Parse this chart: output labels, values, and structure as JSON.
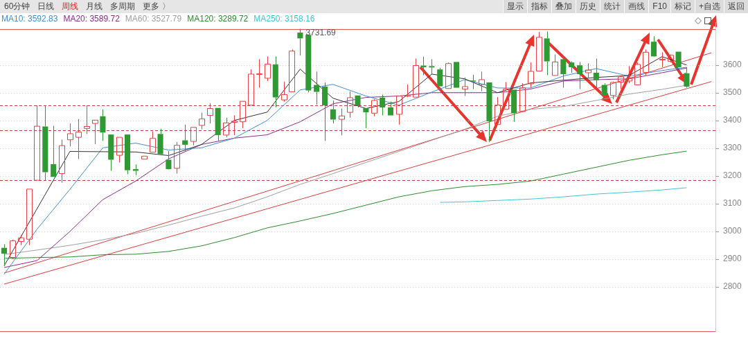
{
  "chart_data": {
    "type": "candlestick",
    "categories": [
      null,
      null,
      null,
      null,
      null,
      null,
      null,
      null,
      null,
      null,
      null,
      null,
      null,
      null,
      null,
      null,
      null,
      null,
      null,
      null,
      null,
      null,
      null,
      null,
      null,
      null,
      null,
      null,
      null,
      null,
      null,
      null,
      null,
      null,
      null,
      null,
      null,
      null,
      null,
      null,
      null,
      null,
      null,
      null,
      null,
      null,
      null,
      null,
      null,
      null,
      null,
      null,
      null,
      null,
      null,
      null,
      null,
      null,
      null,
      null,
      null,
      null,
      null,
      null,
      null,
      null,
      null,
      null,
      null,
      null,
      null,
      null,
      null,
      null,
      null,
      null,
      null,
      null,
      null,
      null,
      null,
      null,
      null,
      null,
      null,
      null,
      null
    ],
    "ohlc": [
      [
        2941,
        2954,
        2875,
        2920
      ],
      [
        2906,
        2970,
        2900,
        2966
      ],
      [
        2964,
        2987,
        2951,
        2977
      ],
      [
        2972,
        3153,
        2951,
        3153
      ],
      [
        3185,
        3455,
        3185,
        3380
      ],
      [
        3379,
        3455,
        3184,
        3214
      ],
      [
        3243,
        3381,
        3197,
        3197
      ],
      [
        3209,
        3332,
        3176,
        3310
      ],
      [
        3331,
        3390,
        3307,
        3353
      ],
      [
        3340,
        3406,
        3261,
        3359
      ],
      [
        3372,
        3455,
        3352,
        3379
      ],
      [
        3390,
        3402,
        3315,
        3402
      ],
      [
        3416,
        3441,
        3327,
        3357
      ],
      [
        3350,
        3350,
        3219,
        3259
      ],
      [
        3275,
        3340,
        3249,
        3340
      ],
      [
        3350,
        3350,
        3207,
        3221
      ],
      [
        3225,
        3242,
        3203,
        3219
      ],
      [
        3261,
        3272,
        3261,
        3272
      ],
      [
        3286,
        3361,
        3286,
        3336
      ],
      [
        3352,
        3371,
        3279,
        3279
      ],
      [
        3259,
        3290,
        3224,
        3225
      ],
      [
        3228,
        3323,
        3209,
        3311
      ],
      [
        3329,
        3386,
        3290,
        3313
      ],
      [
        3325,
        3376,
        3311,
        3376
      ],
      [
        3383,
        3429,
        3369,
        3406
      ],
      [
        3419,
        3463,
        3390,
        3444
      ],
      [
        3446,
        3446,
        3325,
        3348
      ],
      [
        3348,
        3411,
        3340,
        3392
      ],
      [
        3394,
        3419,
        3348,
        3398
      ],
      [
        3396,
        3470,
        3373,
        3470
      ],
      [
        3456,
        3585,
        3456,
        3568
      ],
      [
        3567,
        3622,
        3519,
        3569
      ],
      [
        3553,
        3632,
        3543,
        3604
      ],
      [
        3603,
        3632,
        3448,
        3484
      ],
      [
        3475,
        3541,
        3469,
        3494
      ],
      [
        3504,
        3657,
        3504,
        3651
      ],
      [
        3718,
        3731.69,
        3635,
        3697
      ],
      [
        3710,
        3710,
        3502,
        3509
      ],
      [
        3529,
        3577,
        3458,
        3504
      ],
      [
        3523,
        3538,
        3327,
        3455
      ],
      [
        3441,
        3473,
        3390,
        3404
      ],
      [
        3405,
        3444,
        3347,
        3417
      ],
      [
        3430,
        3506,
        3411,
        3483
      ],
      [
        3491,
        3491,
        3448,
        3455
      ],
      [
        3445,
        3445,
        3373,
        3430
      ],
      [
        3427,
        3477,
        3416,
        3473
      ],
      [
        3483,
        3494,
        3419,
        3448
      ],
      [
        3448,
        3469,
        3419,
        3419
      ],
      [
        3423,
        3489,
        3386,
        3489
      ],
      [
        3488,
        3531,
        3485,
        3491
      ],
      [
        3485,
        3624,
        3485,
        3599
      ],
      [
        3599,
        3631,
        3564,
        3593
      ],
      [
        3597,
        3622,
        3566,
        3592
      ],
      [
        3585,
        3591,
        3524,
        3524
      ],
      [
        3516,
        3610,
        3516,
        3606
      ],
      [
        3612,
        3612,
        3519,
        3519
      ],
      [
        3514,
        3556,
        3489,
        3523
      ],
      [
        3545,
        3566,
        3514,
        3541
      ],
      [
        3531,
        3577,
        3506,
        3548
      ],
      [
        3538,
        3538,
        3323,
        3398
      ],
      [
        3386,
        3485,
        3386,
        3456
      ],
      [
        3441,
        3539,
        3440,
        3514
      ],
      [
        3512,
        3512,
        3396,
        3427
      ],
      [
        3433,
        3535,
        3431,
        3518
      ],
      [
        3533,
        3610,
        3519,
        3578
      ],
      [
        3579,
        3720,
        3579,
        3701
      ],
      [
        3697,
        3722,
        3564,
        3614
      ],
      [
        3563,
        3639,
        3563,
        3612
      ],
      [
        3622,
        3635,
        3519,
        3568
      ],
      [
        3610,
        3614,
        3573,
        3593
      ],
      [
        3600,
        3612,
        3514,
        3568
      ],
      [
        3573,
        3607,
        3552,
        3583
      ],
      [
        3573,
        3624,
        3514,
        3546
      ],
      [
        3529,
        3535,
        3489,
        3491
      ],
      [
        3491,
        3541,
        3477,
        3538
      ],
      [
        3539,
        3564,
        3514,
        3558
      ],
      [
        3543,
        3597,
        3535,
        3552
      ],
      [
        3529,
        3610,
        3529,
        3603
      ],
      [
        3574,
        3657,
        3564,
        3647
      ],
      [
        3685,
        3705,
        3631,
        3632
      ],
      [
        3619,
        3647,
        3593,
        3622
      ],
      [
        3614,
        3639,
        3610,
        3636
      ],
      [
        3649,
        3649,
        3593,
        3593
      ],
      [
        3571,
        3593,
        3519,
        3523
      ],
      null,
      null,
      null
    ],
    "colors": [
      "#2f9a33",
      "#e8413f",
      "#e8413f",
      "#e8413f",
      "#e8413f",
      "#2f9a33",
      "#2f9a33",
      "#e8413f",
      "#e8413f",
      "#e8413f",
      "#e8413f",
      "#e8413f",
      "#2f9a33",
      "#2f9a33",
      "#e8413f",
      "#2f9a33",
      "#2f9a33",
      "#e8413f",
      "#e8413f",
      "#2f9a33",
      "#2f9a33",
      "#e8413f",
      "#2f9a33",
      "#e8413f",
      "#e8413f",
      "#e8413f",
      "#2f9a33",
      "#e8413f",
      "#e8413f",
      "#e8413f",
      "#e8413f",
      "#e8413f",
      "#e8413f",
      "#2f9a33",
      "#e8413f",
      "#e8413f",
      "#2f9a33",
      "#2f9a33",
      "#2f9a33",
      "#2f9a33",
      "#2f9a33",
      "#e8413f",
      "#e8413f",
      "#2f9a33",
      "#2f9a33",
      "#e8413f",
      "#2f9a33",
      "#2f9a33",
      "#e8413f",
      "#e8413f",
      "#e8413f",
      "#2f9a33",
      "#2f9a33",
      "#2f9a33",
      "#e8413f",
      "#2f9a33",
      "#e8413f",
      "#2f9a33",
      "#e8413f",
      "#2f9a33",
      "#e8413f",
      "#e8413f",
      "#2f9a33",
      "#e8413f",
      "#e8413f",
      "#e8413f",
      "#2f9a33",
      "#e8413f",
      "#2f9a33",
      "#2f9a33",
      "#2f9a33",
      "#e8413f",
      "#2f9a33",
      "#2f9a33",
      "#e8413f",
      "#e8413f",
      "#e8413f",
      "#e8413f",
      "#e8413f",
      "#2f9a33",
      "#e8413f",
      "#e8413f",
      "#2f9a33",
      "#2f9a33",
      null,
      null,
      null
    ],
    "series": [
      {
        "type": "line",
        "color": "#333333",
        "values": [
          2876,
          null,
          null,
          null,
          3082,
          null,
          null,
          null,
          3289,
          null,
          null,
          null,
          null,
          null,
          null,
          null,
          3287,
          null,
          null,
          null,
          3274,
          null,
          null,
          null,
          3314,
          null,
          null,
          null,
          3401,
          null,
          null,
          null,
          3431,
          null,
          null,
          null,
          3586,
          null,
          null,
          null,
          3481,
          null,
          null,
          null,
          3444,
          null,
          null,
          null,
          3469,
          null,
          null,
          null,
          3568,
          null,
          null,
          null,
          3551,
          null,
          null,
          null,
          3501,
          null,
          null,
          null,
          3536,
          null,
          null,
          null,
          null,
          null,
          null,
          null,
          3556,
          null,
          null,
          null,
          3563,
          null,
          null,
          null,
          3631,
          null,
          null,
          3601,
          null,
          null,
          null
        ]
      },
      {
        "name": "MA10: 3592.83",
        "type": "line",
        "color": "#3d8fd6",
        "values": [
          2846,
          null,
          null,
          null,
          3008,
          null,
          null,
          null,
          3152,
          null,
          null,
          null,
          3302,
          null,
          null,
          null,
          3319,
          null,
          null,
          null,
          3294,
          null,
          null,
          null,
          3302,
          null,
          null,
          null,
          3337,
          null,
          null,
          null,
          3401,
          null,
          null,
          null,
          3511,
          null,
          null,
          null,
          3531,
          null,
          null,
          null,
          3489,
          null,
          null,
          null,
          3456,
          null,
          null,
          null,
          3503,
          null,
          null,
          null,
          3548,
          null,
          null,
          null,
          3518,
          null,
          null,
          null,
          3518,
          null,
          null,
          null,
          3561,
          null,
          null,
          null,
          3588,
          null,
          null,
          null,
          3561,
          null,
          null,
          null,
          3581,
          null,
          null,
          3593,
          null,
          null,
          null
        ]
      },
      {
        "name": "MA20: 3589.72",
        "type": "line",
        "color": "#8e2a8e",
        "values": [
          2870,
          null,
          null,
          null,
          2895,
          null,
          null,
          null,
          3000,
          null,
          null,
          null,
          3115,
          null,
          null,
          null,
          3182,
          null,
          null,
          null,
          3262,
          null,
          null,
          null,
          3314,
          null,
          null,
          null,
          3337,
          null,
          null,
          null,
          3349,
          null,
          null,
          null,
          3396,
          null,
          null,
          null,
          3461,
          null,
          null,
          null,
          3484,
          null,
          null,
          null,
          3489,
          null,
          null,
          null,
          3501,
          null,
          null,
          null,
          3501,
          null,
          null,
          null,
          3501,
          null,
          null,
          null,
          3514,
          null,
          null,
          null,
          3543,
          null,
          null,
          null,
          3548,
          null,
          null,
          null,
          3551,
          null,
          null,
          null,
          3573,
          null,
          null,
          3590,
          null,
          null,
          null
        ]
      },
      {
        "name": "MA60: 3527.79",
        "type": "line",
        "color": "#a0a0a0",
        "values": [
          2917,
          null,
          null,
          null,
          2933,
          null,
          null,
          null,
          2950,
          null,
          null,
          null,
          2970,
          null,
          null,
          null,
          2993,
          null,
          null,
          null,
          3023,
          null,
          null,
          null,
          3055,
          null,
          null,
          null,
          3085,
          null,
          null,
          null,
          3125,
          null,
          null,
          null,
          3170,
          null,
          null,
          null,
          3209,
          null,
          null,
          null,
          3249,
          null,
          null,
          null,
          3289,
          null,
          null,
          null,
          3329,
          null,
          null,
          null,
          3369,
          null,
          null,
          null,
          3416,
          null,
          null,
          null,
          3441,
          null,
          null,
          null,
          3451,
          null,
          null,
          null,
          3473,
          null,
          null,
          null,
          3496,
          null,
          null,
          null,
          3513,
          null,
          null,
          3528,
          null,
          null,
          null
        ]
      },
      {
        "name": "MA120: 3289.72",
        "type": "line",
        "color": "#2e8b2e",
        "values": [
          2903,
          null,
          null,
          null,
          2906,
          null,
          null,
          null,
          2908,
          null,
          null,
          null,
          2916,
          null,
          null,
          null,
          2918,
          null,
          null,
          null,
          2928,
          null,
          null,
          null,
          2948,
          null,
          null,
          null,
          2978,
          null,
          null,
          null,
          3013,
          null,
          null,
          null,
          3038,
          null,
          null,
          null,
          3065,
          null,
          null,
          null,
          3095,
          null,
          null,
          null,
          3125,
          null,
          null,
          null,
          3147,
          null,
          null,
          null,
          3162,
          null,
          null,
          null,
          3170,
          null,
          null,
          null,
          3182,
          null,
          null,
          null,
          3207,
          null,
          null,
          null,
          3232,
          null,
          null,
          null,
          3257,
          null,
          null,
          null,
          3277,
          null,
          null,
          3290,
          null,
          null,
          null
        ]
      },
      {
        "name": "MA250: 3158.16",
        "type": "line",
        "color": "#3ec6d6",
        "values": [
          null,
          null,
          null,
          null,
          null,
          null,
          null,
          null,
          null,
          null,
          null,
          null,
          null,
          null,
          null,
          null,
          null,
          null,
          null,
          null,
          null,
          null,
          null,
          null,
          null,
          null,
          null,
          null,
          null,
          null,
          null,
          null,
          null,
          null,
          null,
          null,
          null,
          null,
          null,
          null,
          null,
          null,
          null,
          null,
          null,
          null,
          null,
          null,
          null,
          null,
          null,
          null,
          null,
          3105,
          null,
          null,
          3107,
          null,
          null,
          null,
          3112,
          null,
          null,
          null,
          3117,
          null,
          null,
          null,
          3125,
          null,
          null,
          null,
          3135,
          null,
          null,
          null,
          3142,
          null,
          null,
          null,
          3150,
          null,
          null,
          3158,
          null,
          null,
          null
        ]
      },
      {
        "type": "line",
        "color": "#e03c3c",
        "values": [
          2850,
          null,
          null,
          null,
          null,
          null,
          null,
          null,
          null,
          null,
          null,
          null,
          null,
          null,
          null,
          null,
          null,
          null,
          null,
          null,
          null,
          null,
          null,
          null,
          null,
          null,
          null,
          null,
          null,
          null,
          null,
          null,
          null,
          null,
          null,
          null,
          null,
          null,
          null,
          null,
          null,
          null,
          null,
          null,
          null,
          null,
          null,
          null,
          null,
          null,
          null,
          null,
          null,
          null,
          null,
          null,
          null,
          null,
          null,
          null,
          null,
          null,
          null,
          null,
          null,
          null,
          null,
          null,
          null,
          null,
          null,
          null,
          null,
          null,
          null,
          null,
          null,
          null,
          null,
          null,
          null,
          null,
          null,
          null,
          null,
          null,
          3645
        ]
      },
      {
        "type": "line",
        "color": "#e03c3c",
        "values": [
          2810,
          null,
          null,
          null,
          null,
          null,
          null,
          null,
          null,
          null,
          null,
          null,
          null,
          null,
          null,
          null,
          null,
          null,
          null,
          null,
          null,
          null,
          null,
          null,
          null,
          null,
          null,
          null,
          null,
          null,
          null,
          null,
          null,
          null,
          null,
          null,
          null,
          null,
          null,
          null,
          null,
          null,
          null,
          null,
          null,
          null,
          null,
          null,
          null,
          null,
          null,
          null,
          null,
          null,
          null,
          null,
          null,
          null,
          null,
          null,
          null,
          null,
          null,
          null,
          null,
          null,
          null,
          null,
          null,
          null,
          null,
          null,
          null,
          null,
          null,
          null,
          null,
          null,
          null,
          null,
          null,
          null,
          null,
          null,
          null,
          null,
          3541
        ]
      }
    ],
    "ylim": [
      2640,
      3755
    ],
    "yticks": [
      2800,
      2900,
      3000,
      3100,
      3200,
      3300,
      3400,
      3500,
      3600
    ],
    "ref_lines": [
      {
        "axis": "y",
        "value": 3731.69,
        "color": "#e05a5a",
        "line_style": "solid"
      },
      {
        "axis": "y",
        "value": 3456,
        "color": "#c83c3c",
        "line_style": "dashed"
      },
      {
        "axis": "y",
        "value": 3366,
        "color": "#c83c3c",
        "line_style": "dashed"
      },
      {
        "axis": "y",
        "value": 3184,
        "color": "#c83c3c",
        "line_style": "dashed"
      }
    ],
    "annotations": [
      "60分钟",
      "日线",
      "周线",
      "月线",
      "多周期",
      "更多 〉",
      "显示",
      "指标",
      "叠加",
      "历史",
      "统计",
      "画线",
      "F10",
      "标记",
      "+自选",
      "返回",
      {
        "text": "3731.69",
        "y": 3731.69
      }
    ],
    "grid": "y",
    "tick_labels": "y",
    "marker": "none"
  }
}
